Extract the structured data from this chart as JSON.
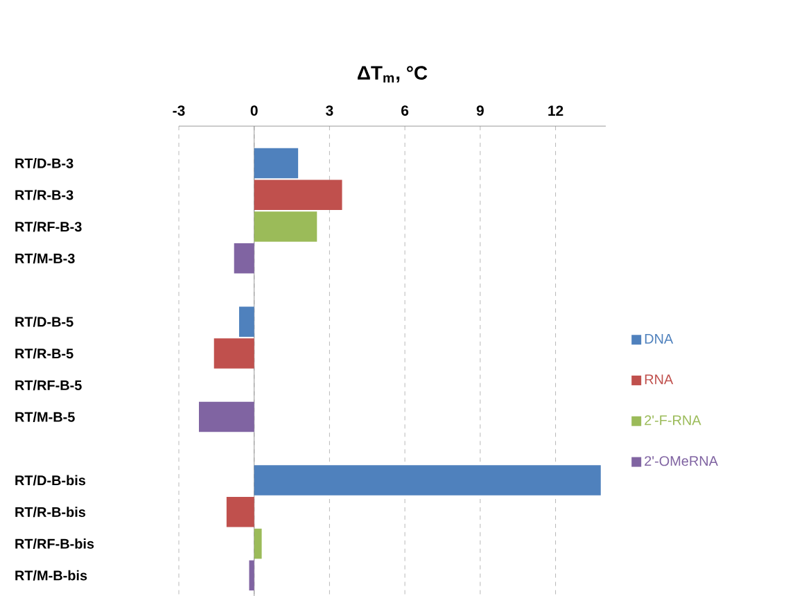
{
  "chart_data": {
    "type": "bar",
    "orientation": "horizontal",
    "title": "ΔT$_{m}$, °C",
    "categories": [
      "RT/D-B-3",
      "RT/R-B-3",
      "RT/RF-B-3",
      "RT/M-B-3",
      null,
      "RT/D-B-5",
      "RT/R-B-5",
      "RT/RF-B-5",
      "RT/M-B-5",
      null,
      "RT/D-B-bis",
      "RT/R-B-bis",
      "RT/RF-B-bis",
      "RT/M-B-bis"
    ],
    "series": [
      {
        "name": "DNA",
        "color": "#4f81bd",
        "values": [
          1.75,
          null,
          null,
          null,
          null,
          -0.6,
          null,
          null,
          null,
          null,
          13.8,
          null,
          null,
          null
        ]
      },
      {
        "name": "RNA",
        "color": "#c0504d",
        "values": [
          null,
          3.5,
          null,
          null,
          null,
          null,
          -1.6,
          null,
          null,
          null,
          null,
          -1.1,
          null,
          null
        ]
      },
      {
        "name": "2'-F-RNA",
        "color": "#9bbb59",
        "values": [
          null,
          null,
          2.5,
          null,
          null,
          null,
          null,
          null,
          null,
          null,
          null,
          null,
          0.3,
          null
        ]
      },
      {
        "name": "2'-OMeRNA",
        "color": "#8064a2",
        "values": [
          null,
          null,
          null,
          -0.8,
          null,
          null,
          null,
          null,
          -2.2,
          null,
          null,
          null,
          null,
          -0.2
        ]
      }
    ],
    "xlim": [
      -3,
      14
    ],
    "xticks": [
      -3,
      0,
      3,
      6,
      9,
      12
    ],
    "grid": "x",
    "legend": "right"
  }
}
